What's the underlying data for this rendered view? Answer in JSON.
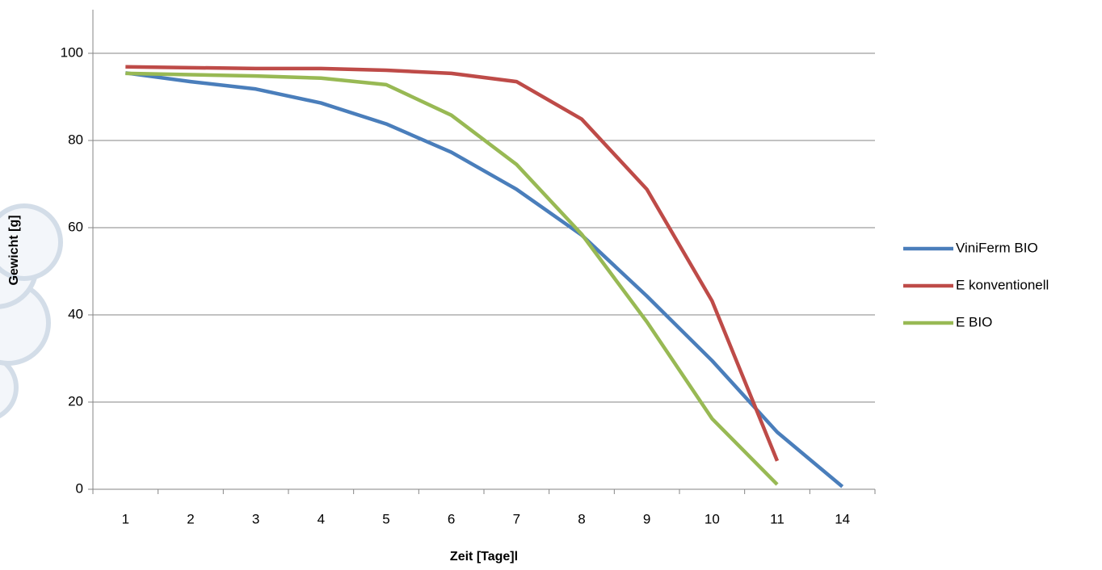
{
  "chart_data": {
    "type": "line",
    "x_label": "Zeit [Tage]l",
    "y_label": "Gewicht [g]",
    "categories": [
      "1",
      "2",
      "3",
      "4",
      "5",
      "6",
      "7",
      "8",
      "9",
      "10",
      "11",
      "14"
    ],
    "series": [
      {
        "name": "ViniFerm BIO",
        "color": "#4a7ebb",
        "values": [
          95.5,
          93.5,
          91.8,
          88.6,
          83.8,
          77.3,
          68.8,
          58.3,
          44.3,
          29.5,
          13.1,
          0.6
        ]
      },
      {
        "name": "E konventionell",
        "color": "#be4b48",
        "values": [
          96.9,
          96.7,
          96.5,
          96.5,
          96.1,
          95.4,
          93.5,
          84.9,
          68.8,
          43.2,
          6.5,
          null
        ]
      },
      {
        "name": "E BIO",
        "color": "#98b954",
        "values": [
          95.4,
          95.1,
          94.8,
          94.3,
          92.8,
          85.8,
          74.5,
          58.5,
          38.4,
          16.2,
          1.1,
          null
        ]
      }
    ],
    "ylim": [
      0,
      110
    ],
    "yticks": [
      0,
      20,
      40,
      60,
      80,
      100
    ],
    "grid": true,
    "legend": "right"
  }
}
